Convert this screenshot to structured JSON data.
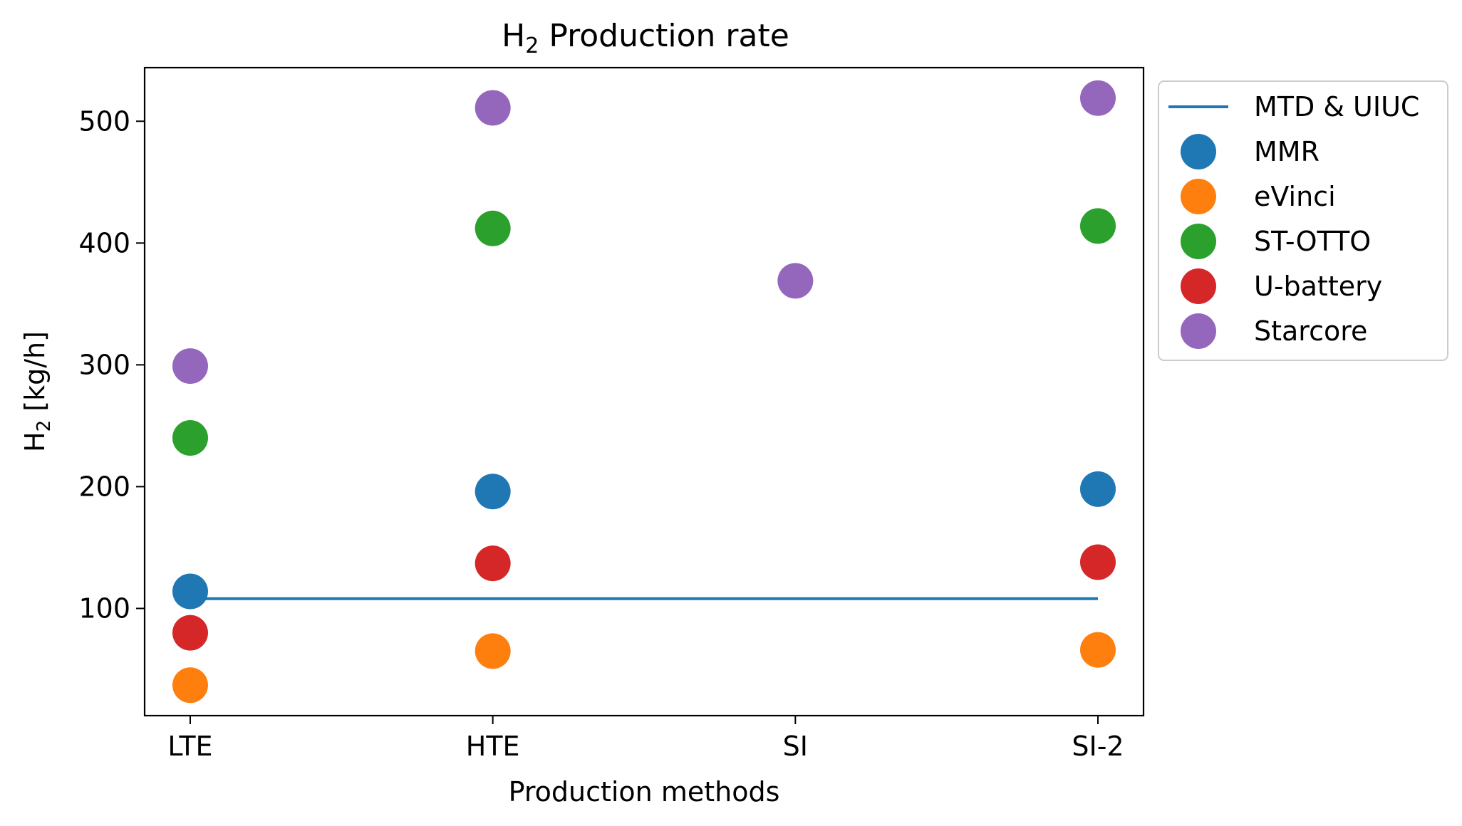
{
  "chart_data": {
    "type": "scatter",
    "title_main": "H",
    "title_sub": "2",
    "title_rest": " Production rate",
    "xlabel": "Production methods",
    "ylabel_main": "H",
    "ylabel_sub": "2",
    "ylabel_rest": " [kg/h]",
    "categories": [
      "LTE",
      "HTE",
      "SI",
      "SI-2"
    ],
    "ylim": [
      12,
      544
    ],
    "yticks": [
      100,
      200,
      300,
      400,
      500
    ],
    "grid": false,
    "legend_position": "outside-top-right",
    "line": {
      "name": "MTD & UIUC",
      "color": "#1f77b4",
      "x_start": 0,
      "x_end": 3,
      "value": 108
    },
    "series": [
      {
        "name": "MMR",
        "color": "#1f77b4",
        "values": [
          114,
          196,
          null,
          198
        ]
      },
      {
        "name": "eVinci",
        "color": "#ff7f0e",
        "values": [
          37,
          65,
          null,
          66
        ]
      },
      {
        "name": "ST-OTTO",
        "color": "#2ca02c",
        "values": [
          240,
          412,
          null,
          414
        ]
      },
      {
        "name": "U-battery",
        "color": "#d62728",
        "values": [
          80,
          137,
          null,
          138
        ]
      },
      {
        "name": "Starcore",
        "color": "#9467bd",
        "values": [
          299,
          511,
          369,
          519
        ]
      }
    ]
  }
}
